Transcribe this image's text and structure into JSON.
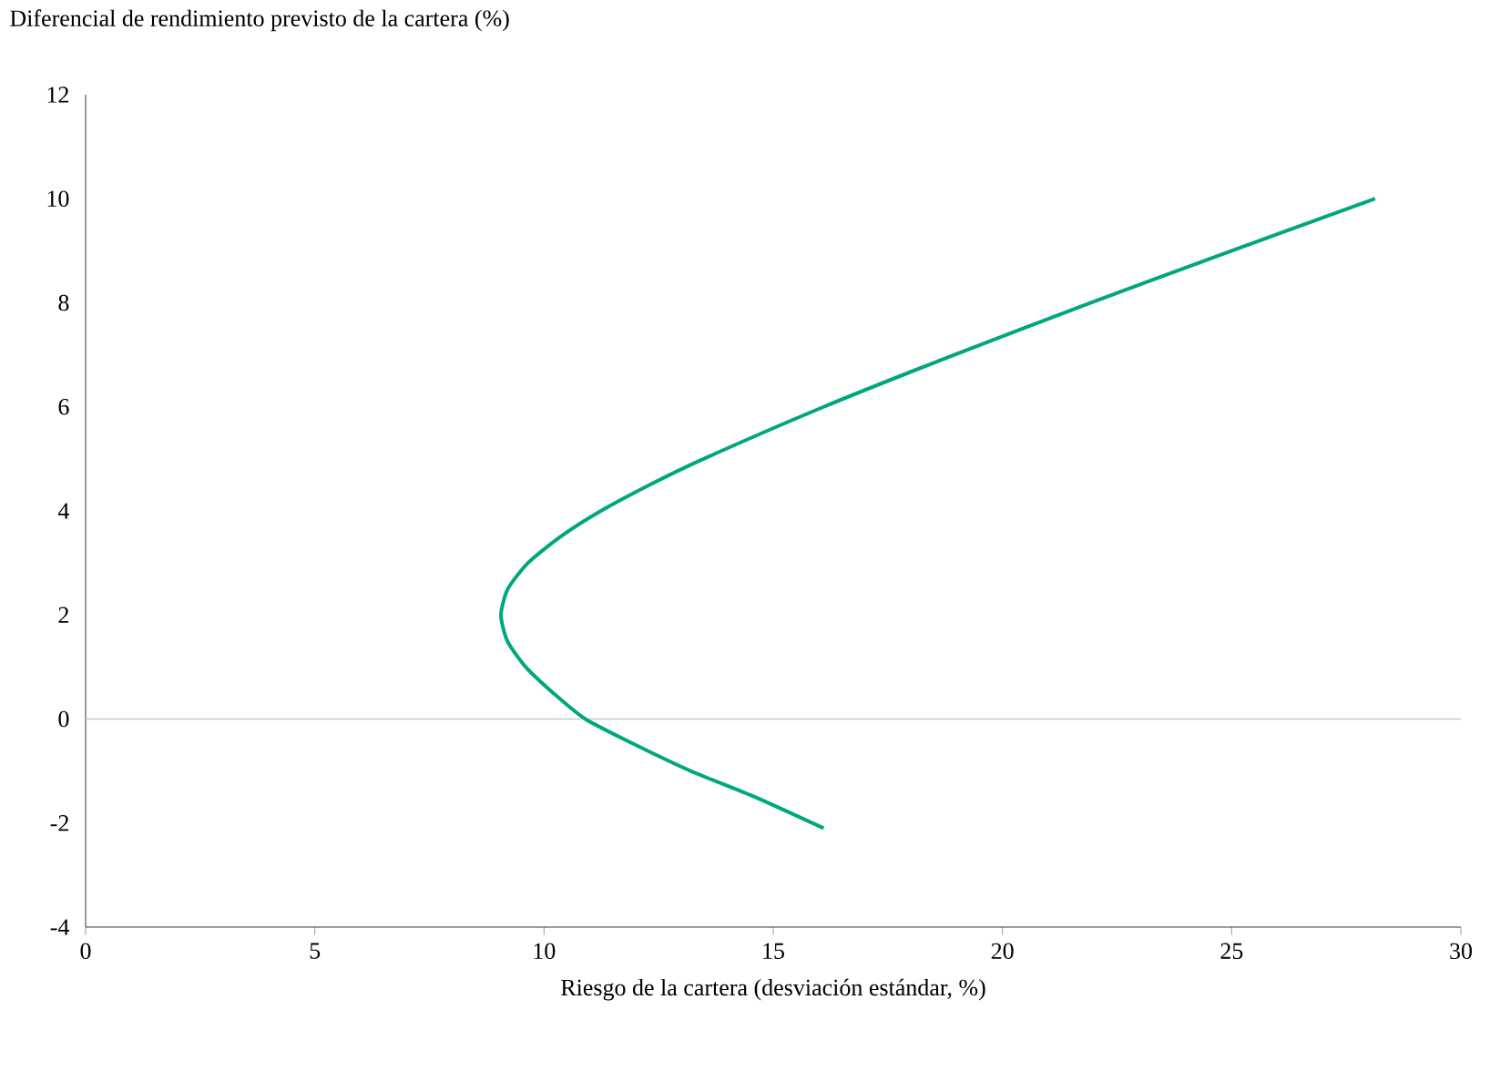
{
  "chart_data": {
    "type": "line",
    "ylabel": "Diferencial de rendimiento previsto de la cartera (%)",
    "xlabel": "Riesgo de la cartera (desviación estándar, %)",
    "xlim": [
      0,
      30
    ],
    "xticks": [
      0,
      5,
      10,
      15,
      20,
      25,
      30
    ],
    "ylim": [
      -4,
      12
    ],
    "yticks": [
      -4,
      -2,
      0,
      2,
      4,
      6,
      8,
      10,
      12
    ],
    "series": [
      {
        "color": "#00a77e",
        "x": [
          16.1,
          14.6,
          13.2,
          12.0,
          10.9,
          10.2,
          9.6,
          9.2,
          9.06,
          9.21,
          9.65,
          10.35,
          11.24,
          12.3,
          13.48,
          16.1,
          18.95,
          21.93,
          25.0,
          28.13
        ],
        "values": [
          -2.1,
          -1.5,
          -1,
          -0.5,
          0,
          0.5,
          1,
          1.5,
          2,
          2.5,
          3,
          3.5,
          4,
          4.5,
          5,
          6,
          7,
          8,
          9,
          10
        ]
      }
    ],
    "ref_lines": [
      {
        "axis": "y",
        "value": 0,
        "color": "#c8c8c8"
      }
    ],
    "grid": false,
    "marker": "none",
    "line_style": "solid"
  }
}
